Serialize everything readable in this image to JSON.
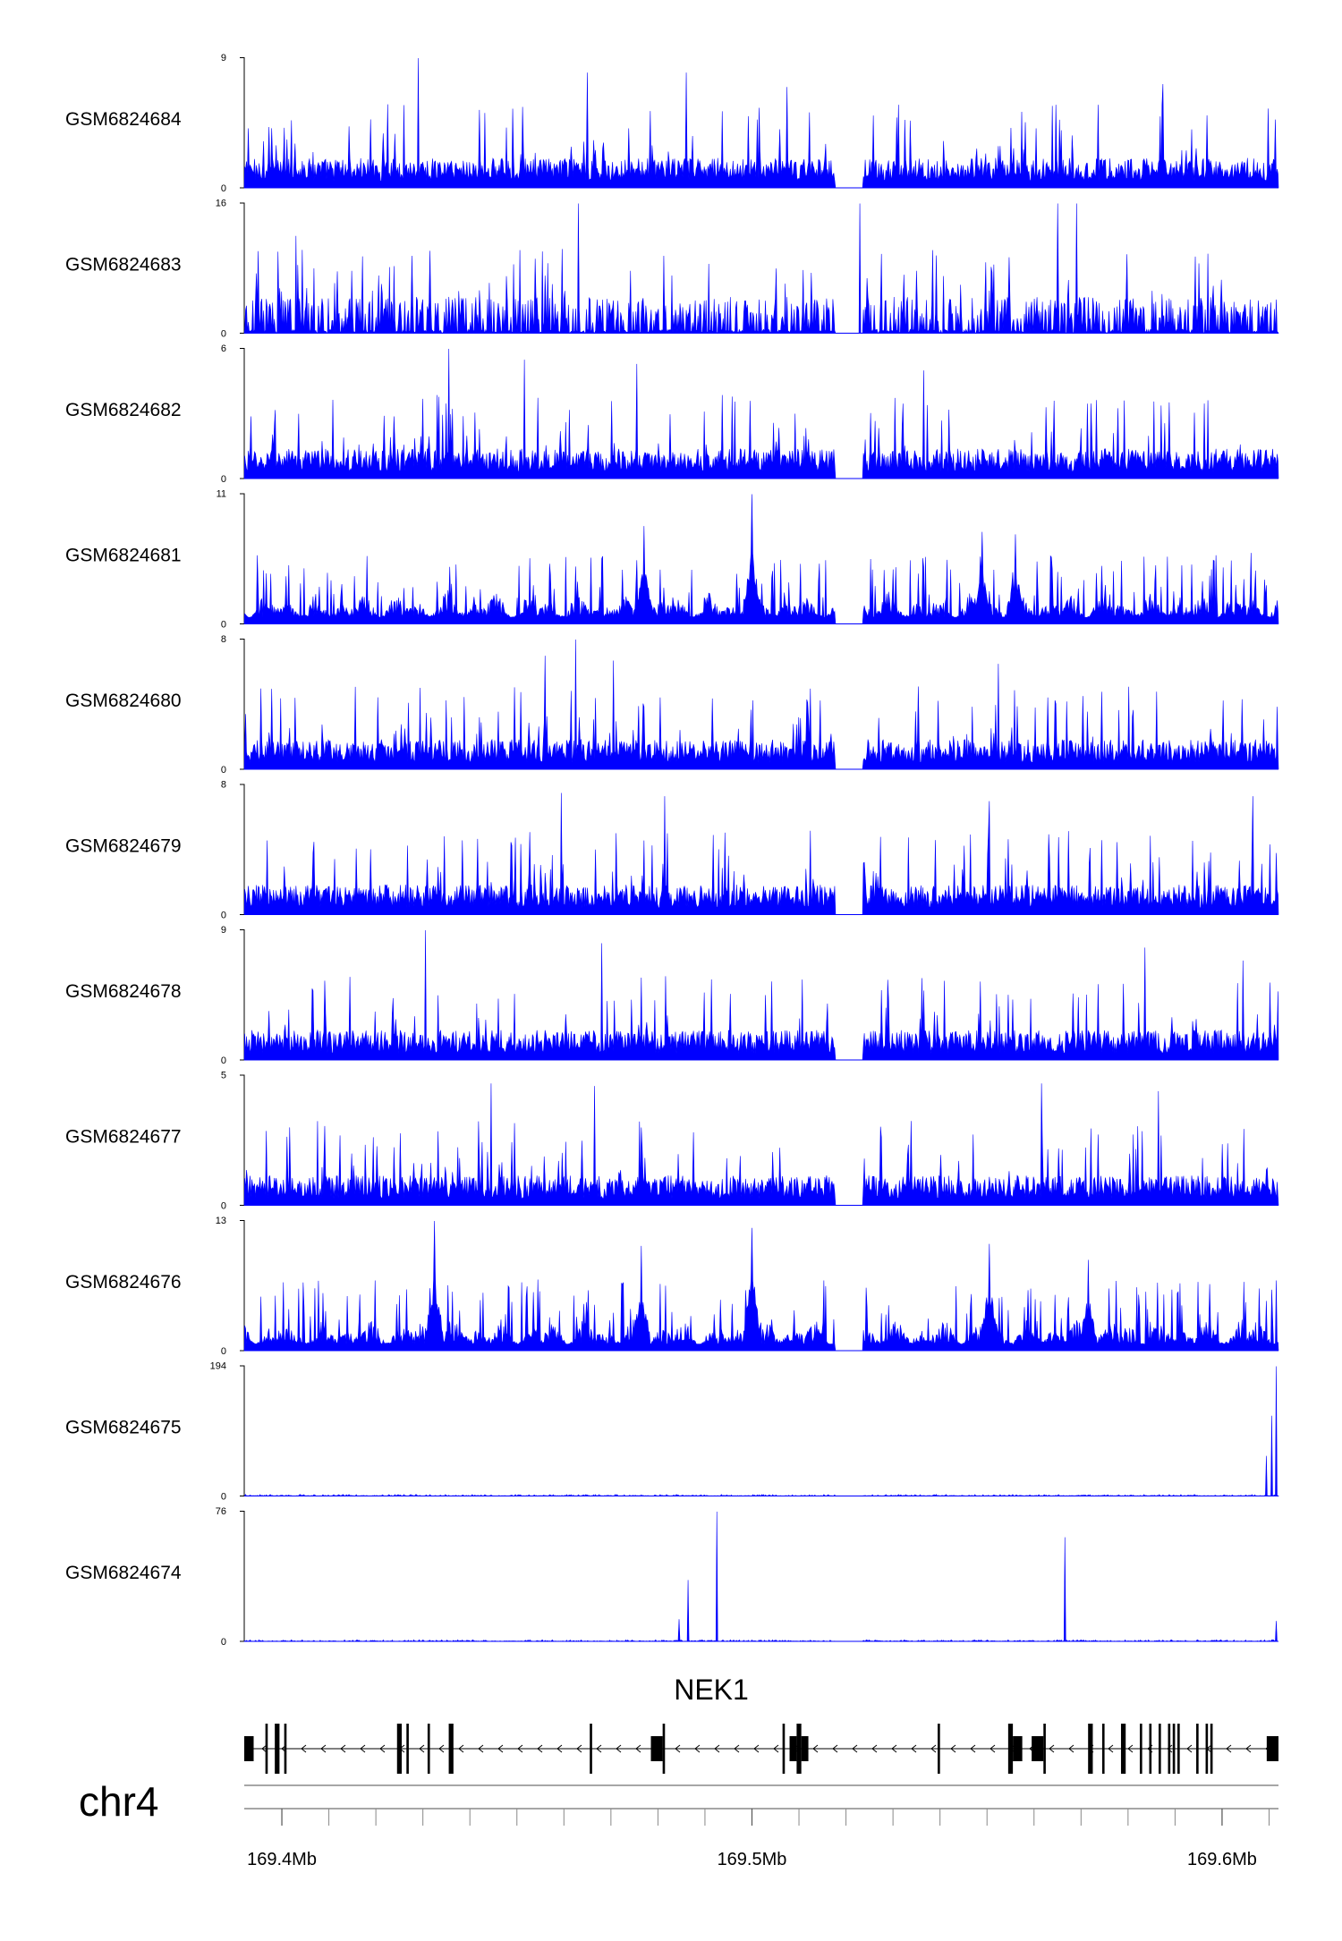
{
  "chart_data": {
    "type": "area",
    "chromosome": "chr4",
    "gene": "NEK1",
    "track_color": "#0000ff",
    "x_axis": {
      "ticks": [
        {
          "value": 169.4,
          "label": "169.4Mb"
        },
        {
          "value": 169.5,
          "label": "169.5Mb"
        },
        {
          "value": 169.6,
          "label": "169.6Mb"
        }
      ],
      "minor_tick_step": 0.02,
      "xlim": [
        169.392,
        169.612
      ]
    },
    "tracks": [
      {
        "name": "GSM6824684",
        "ymin": "0",
        "ymax": "9",
        "ymax_value": 9,
        "profile": "sparse",
        "peaks": [
          [
            169.429,
            9
          ],
          [
            169.465,
            8
          ],
          [
            169.486,
            8
          ],
          [
            169.5075,
            7
          ],
          [
            169.5875,
            7.2
          ]
        ]
      },
      {
        "name": "GSM6824683",
        "ymin": "0",
        "ymax": "16",
        "ymax_value": 16,
        "profile": "spiky",
        "peaks": [
          [
            169.403,
            12
          ],
          [
            169.463,
            16
          ],
          [
            169.523,
            16
          ],
          [
            169.565,
            16
          ],
          [
            169.569,
            16
          ]
        ]
      },
      {
        "name": "GSM6824682",
        "ymin": "0",
        "ymax": "6",
        "ymax_value": 6,
        "profile": "sparse",
        "peaks": [
          [
            169.4355,
            6
          ],
          [
            169.4515,
            5.5
          ],
          [
            169.4755,
            5.3
          ],
          [
            169.5365,
            5.0
          ]
        ]
      },
      {
        "name": "GSM6824681",
        "ymin": "0",
        "ymax": "11",
        "ymax_value": 11,
        "profile": "broad",
        "peaks": [
          [
            169.5,
            11
          ],
          [
            169.477,
            8.3
          ],
          [
            169.549,
            7.8
          ],
          [
            169.556,
            7.6
          ]
        ]
      },
      {
        "name": "GSM6824680",
        "ymin": "0",
        "ymax": "8",
        "ymax_value": 8,
        "profile": "sparse",
        "peaks": [
          [
            169.4625,
            8
          ],
          [
            169.456,
            7
          ],
          [
            169.4705,
            6.7
          ],
          [
            169.5525,
            6.5
          ]
        ]
      },
      {
        "name": "GSM6824679",
        "ymin": "0",
        "ymax": "8",
        "ymax_value": 8,
        "profile": "sparse",
        "peaks": [
          [
            169.4595,
            7.5
          ],
          [
            169.4815,
            7.3
          ],
          [
            169.5505,
            7.0
          ],
          [
            169.6065,
            7.3
          ]
        ]
      },
      {
        "name": "GSM6824678",
        "ymin": "0",
        "ymax": "9",
        "ymax_value": 9,
        "profile": "sparse",
        "peaks": [
          [
            169.4305,
            9
          ],
          [
            169.468,
            8.1
          ],
          [
            169.5835,
            7.8
          ],
          [
            169.6045,
            6.9
          ]
        ]
      },
      {
        "name": "GSM6824677",
        "ymin": "0",
        "ymax": "5",
        "ymax_value": 5,
        "profile": "sparse",
        "peaks": [
          [
            169.4445,
            4.7
          ],
          [
            169.4665,
            4.6
          ],
          [
            169.5615,
            4.7
          ],
          [
            169.5865,
            4.4
          ]
        ]
      },
      {
        "name": "GSM6824676",
        "ymin": "0",
        "ymax": "13",
        "ymax_value": 13,
        "profile": "broad",
        "peaks": [
          [
            169.4325,
            13
          ],
          [
            169.5,
            12.3
          ],
          [
            169.4765,
            10.5
          ],
          [
            169.5505,
            10.7
          ],
          [
            169.5715,
            9.1
          ]
        ]
      },
      {
        "name": "GSM6824675",
        "ymin": "0",
        "ymax": "194",
        "ymax_value": 194,
        "profile": "flat",
        "peaks": [
          [
            169.6115,
            194
          ],
          [
            169.6105,
            120
          ],
          [
            169.6095,
            60
          ]
        ]
      },
      {
        "name": "GSM6824674",
        "ymin": "0",
        "ymax": "76",
        "ymax_value": 76,
        "profile": "flat",
        "peaks": [
          [
            169.4925,
            76
          ],
          [
            169.4865,
            36
          ],
          [
            169.4845,
            13
          ],
          [
            169.5665,
            61
          ],
          [
            169.6115,
            12
          ]
        ]
      }
    ],
    "gene_model": {
      "start": 169.392,
      "end": 169.612,
      "strand": "-",
      "exons": [
        [
          169.392,
          169.394
        ],
        [
          169.3965,
          169.397
        ],
        [
          169.3985,
          169.3995
        ],
        [
          169.4005,
          169.401
        ],
        [
          169.4245,
          169.4255
        ],
        [
          169.4265,
          169.427
        ],
        [
          169.431,
          169.4315
        ],
        [
          169.4355,
          169.4365
        ],
        [
          169.4655,
          169.466
        ],
        [
          169.4785,
          169.481
        ],
        [
          169.481,
          169.4815
        ],
        [
          169.5065,
          169.507
        ],
        [
          169.508,
          169.5095
        ],
        [
          169.5095,
          169.5105
        ],
        [
          169.5105,
          169.512
        ],
        [
          169.5395,
          169.54
        ],
        [
          169.5545,
          169.5555
        ],
        [
          169.5555,
          169.5575
        ],
        [
          169.5595,
          169.562
        ],
        [
          169.562,
          169.5625
        ],
        [
          169.5715,
          169.5725
        ],
        [
          169.5745,
          169.575
        ],
        [
          169.5785,
          169.5795
        ],
        [
          169.5825,
          169.583
        ],
        [
          169.5845,
          169.585
        ],
        [
          169.5865,
          169.587
        ],
        [
          169.5885,
          169.589
        ],
        [
          169.5895,
          169.59
        ],
        [
          169.5905,
          169.591
        ],
        [
          169.5945,
          169.595
        ],
        [
          169.5965,
          169.597
        ],
        [
          169.5975,
          169.598
        ],
        [
          169.6095,
          169.612
        ]
      ]
    }
  }
}
